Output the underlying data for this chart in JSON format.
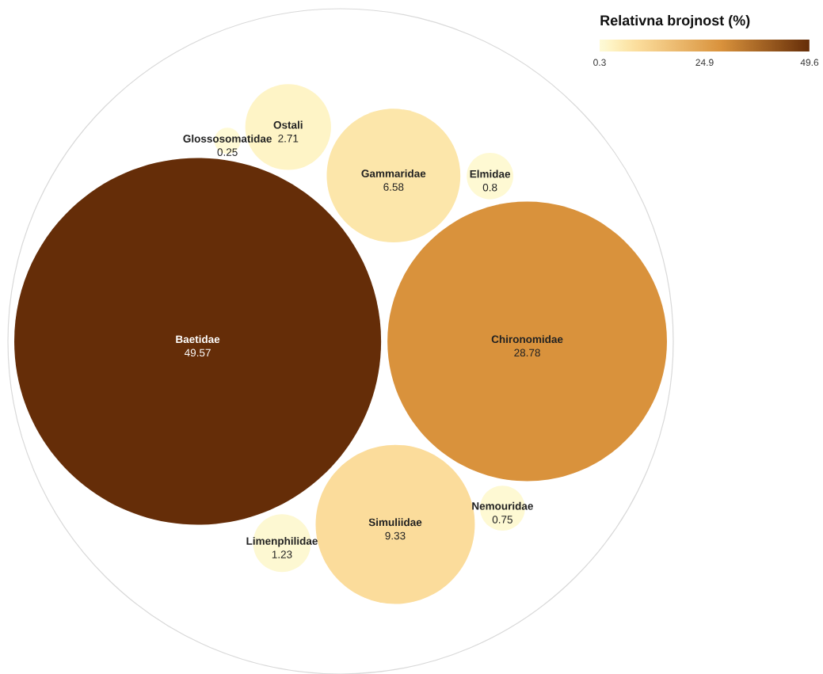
{
  "chart_data": {
    "type": "other",
    "categories": [
      "Baetidae",
      "Chironomidae",
      "Simuliidae",
      "Gammaridae",
      "Ostali",
      "Limenphilidae",
      "Elmidae",
      "Nemouridae",
      "Glossosomatidae"
    ],
    "values": [
      49.57,
      28.78,
      9.33,
      6.58,
      2.71,
      1.23,
      0.8,
      0.75,
      0.25
    ],
    "colors": [
      "#652d08",
      "#d9923c",
      "#fbdc9b",
      "#fce6aa",
      "#fef4c6",
      "#fdf8d2",
      "#fef9d3",
      "#fef9d3",
      "#fffad6"
    ],
    "data_labels": true,
    "clabel": "Relativna brojnost (%)",
    "annotations": [
      "0.3",
      "24.9",
      "49.6"
    ]
  }
}
